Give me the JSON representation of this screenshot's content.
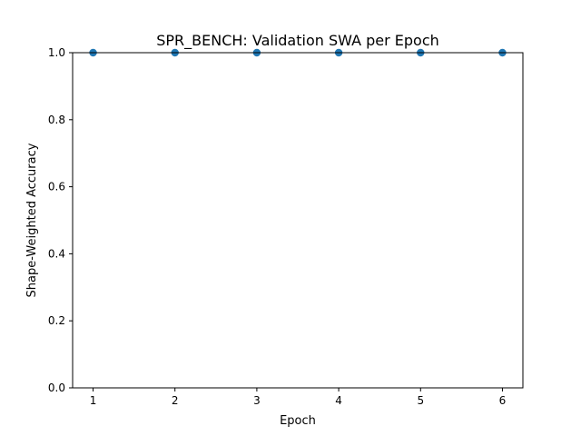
{
  "chart_data": {
    "type": "scatter",
    "title": "SPR_BENCH: Validation SWA per Epoch",
    "xlabel": "Epoch",
    "ylabel": "Shape-Weighted Accuracy",
    "x": [
      1,
      2,
      3,
      4,
      5,
      6
    ],
    "y": [
      1.0,
      1.0,
      1.0,
      1.0,
      1.0,
      1.0
    ],
    "xlim": [
      0.75,
      6.25
    ],
    "ylim": [
      0.0,
      1.0
    ],
    "xticks": [
      1,
      2,
      3,
      4,
      5,
      6
    ],
    "yticks": [
      0.0,
      0.2,
      0.4,
      0.6,
      0.8,
      1.0
    ],
    "ytick_labels": [
      "0.0",
      "0.2",
      "0.4",
      "0.6",
      "0.8",
      "1.0"
    ],
    "grid": false,
    "marker_color": "#1f77b4"
  }
}
